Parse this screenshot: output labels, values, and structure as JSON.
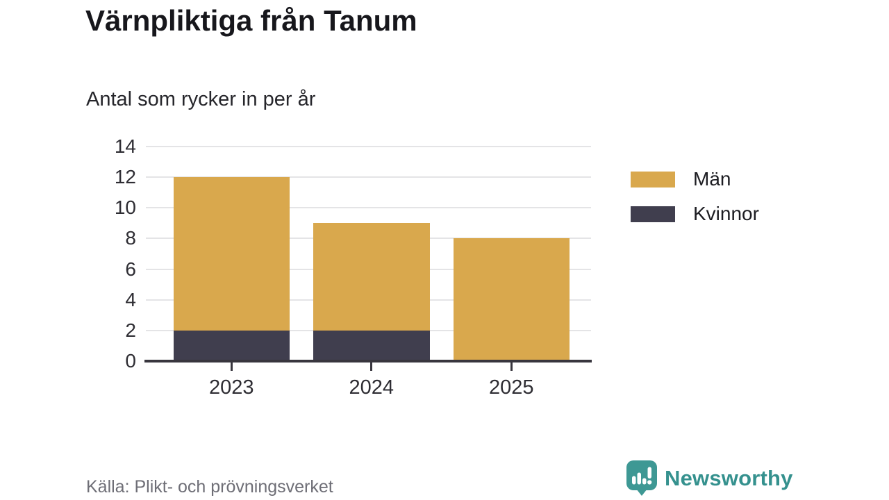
{
  "chart_data": {
    "type": "bar",
    "stacked": true,
    "title": "Värnpliktiga från Tanum",
    "subtitle": "Antal som rycker in per år",
    "categories": [
      "2023",
      "2024",
      "2025"
    ],
    "series": [
      {
        "name": "Män",
        "color": "#d9a84d",
        "values": [
          10,
          7,
          8
        ]
      },
      {
        "name": "Kvinnor",
        "color": "#403e4e",
        "values": [
          2,
          2,
          0
        ]
      }
    ],
    "stack_totals": [
      12,
      9,
      8
    ],
    "ylim": [
      0,
      14
    ],
    "yticks": [
      0,
      2,
      4,
      6,
      8,
      10,
      12,
      14
    ],
    "grid": "horizontal",
    "legend_position": "right"
  },
  "footer": {
    "source": "Källa: Plikt- och prövningsverket",
    "brand": "Newsworthy",
    "brand_color": "#35918e",
    "logo_icon": "speech-bubble-bar-chart-icon"
  },
  "colors": {
    "axis": "#38363e",
    "gridline": "#e4e4e6",
    "tick_text": "#2e2d33",
    "muted_text": "#6e6e76"
  }
}
